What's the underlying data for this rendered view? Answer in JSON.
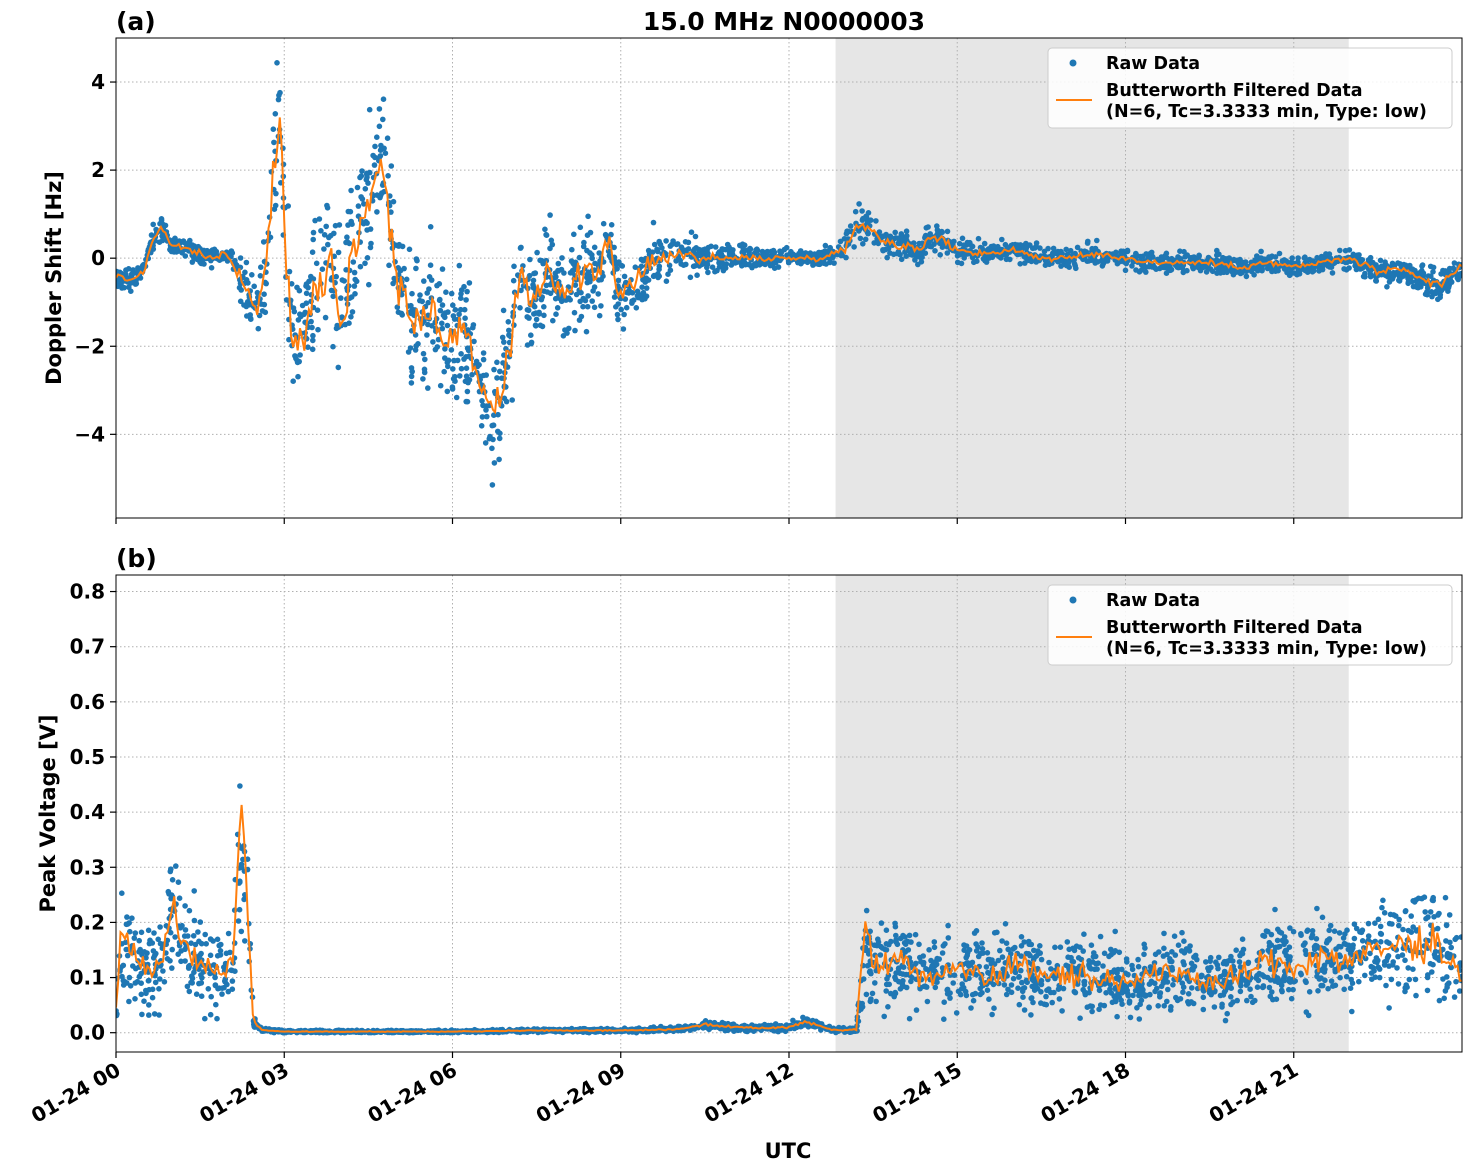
{
  "figure_title": "15.0 MHz N0000003",
  "xlabel": "UTC",
  "colors": {
    "raw": "#1f77b4",
    "filtered": "#ff7f0e",
    "shade": "#e6e6e6",
    "grid": "#b0b0b0"
  },
  "x_ticks": [
    {
      "hour": 0,
      "label": "01-24 00"
    },
    {
      "hour": 3,
      "label": "01-24 03"
    },
    {
      "hour": 6,
      "label": "01-24 06"
    },
    {
      "hour": 9,
      "label": "01-24 09"
    },
    {
      "hour": 12,
      "label": "01-24 12"
    },
    {
      "hour": 15,
      "label": "01-24 15"
    },
    {
      "hour": 18,
      "label": "01-24 18"
    },
    {
      "hour": 21,
      "label": "01-24 21"
    }
  ],
  "chart_data": [
    {
      "type": "scatter",
      "panel_label": "(a)",
      "ylabel": "Doppler Shift [Hz]",
      "xlim_hours": [
        0,
        24
      ],
      "ylim": [
        -5.9,
        5.0
      ],
      "y_ticks": [
        {
          "v": 4,
          "label": "4"
        },
        {
          "v": 2,
          "label": "2"
        },
        {
          "v": 0,
          "label": "0"
        },
        {
          "v": -2,
          "label": "−2"
        },
        {
          "v": -4,
          "label": "−4"
        }
      ],
      "shaded_region_hours": [
        12.83,
        21.98
      ],
      "grid": true,
      "legend_position": "top-right",
      "series": [
        {
          "name": "Raw Data",
          "mark": "points",
          "x_hours": [
            0,
            0.25,
            0.5,
            0.65,
            0.8,
            1.0,
            1.3,
            1.6,
            2.0,
            2.1,
            2.3,
            2.5,
            2.7,
            2.85,
            2.95,
            3.05,
            3.2,
            3.5,
            3.8,
            4.0,
            4.3,
            4.6,
            4.8,
            5.0,
            5.3,
            5.6,
            5.9,
            6.2,
            6.5,
            6.7,
            6.9,
            7.2,
            7.4,
            7.7,
            8.0,
            8.3,
            8.6,
            8.8,
            9.0,
            9.3,
            9.6,
            10.0,
            10.5,
            11.0,
            11.5,
            12.0,
            12.5,
            12.8,
            13.0,
            13.2,
            13.4,
            13.7,
            14.0,
            14.3,
            14.6,
            15.0,
            15.5,
            16.0,
            16.5,
            17.0,
            17.5,
            18.0,
            18.5,
            19.0,
            19.5,
            20.0,
            20.5,
            21.0,
            21.5,
            22.0,
            22.5,
            23.0,
            23.3,
            23.6,
            24.0
          ],
          "y": [
            -0.4,
            -0.5,
            -0.3,
            0.4,
            0.7,
            0.3,
            0.2,
            0.0,
            0.1,
            -0.2,
            -0.6,
            -1.3,
            0.0,
            2.8,
            2.5,
            -0.5,
            -2.0,
            -1.0,
            0.2,
            -1.5,
            0.5,
            1.8,
            2.0,
            -0.5,
            -1.5,
            -1.0,
            -2.0,
            -1.5,
            -2.8,
            -3.8,
            -3.2,
            -0.5,
            -1.0,
            -0.2,
            -0.8,
            -0.4,
            -0.3,
            0.5,
            -1.0,
            -0.5,
            0.0,
            0.1,
            0.0,
            0.0,
            0.0,
            0.0,
            0.0,
            0.1,
            0.2,
            0.8,
            0.7,
            0.4,
            0.3,
            0.2,
            0.5,
            0.2,
            0.1,
            0.2,
            0.0,
            0.0,
            0.1,
            0.0,
            -0.1,
            -0.1,
            -0.1,
            -0.2,
            -0.1,
            -0.2,
            -0.1,
            0.0,
            -0.3,
            -0.3,
            -0.5,
            -0.7,
            -0.2
          ],
          "spread": [
            0.2,
            0.2,
            0.2,
            0.25,
            0.25,
            0.2,
            0.2,
            0.2,
            0.25,
            0.3,
            0.5,
            0.6,
            1.0,
            1.6,
            1.6,
            1.6,
            1.4,
            1.4,
            1.6,
            1.5,
            1.4,
            1.4,
            1.4,
            1.3,
            1.3,
            1.3,
            1.2,
            1.2,
            1.0,
            1.2,
            1.2,
            1.0,
            1.0,
            1.0,
            1.0,
            0.9,
            0.9,
            0.9,
            0.9,
            0.7,
            0.6,
            0.45,
            0.35,
            0.25,
            0.2,
            0.15,
            0.15,
            0.2,
            0.3,
            0.4,
            0.35,
            0.3,
            0.3,
            0.3,
            0.3,
            0.25,
            0.2,
            0.2,
            0.2,
            0.2,
            0.2,
            0.2,
            0.2,
            0.2,
            0.2,
            0.2,
            0.2,
            0.2,
            0.2,
            0.2,
            0.25,
            0.25,
            0.3,
            0.35,
            0.25
          ]
        },
        {
          "name": "Butterworth Filtered Data\n(N=6, Tc=3.3333 min, Type: low)",
          "mark": "line",
          "x_hours": [
            0,
            0.25,
            0.5,
            0.65,
            0.8,
            1.0,
            1.3,
            1.6,
            2.0,
            2.1,
            2.3,
            2.5,
            2.7,
            2.85,
            2.95,
            3.05,
            3.2,
            3.5,
            3.8,
            4.0,
            4.3,
            4.6,
            4.8,
            5.0,
            5.3,
            5.6,
            5.9,
            6.2,
            6.5,
            6.7,
            6.9,
            7.2,
            7.4,
            7.7,
            8.0,
            8.3,
            8.6,
            8.8,
            9.0,
            9.3,
            9.6,
            10.0,
            10.5,
            11.0,
            11.5,
            12.0,
            12.5,
            12.8,
            13.0,
            13.2,
            13.4,
            13.7,
            14.0,
            14.3,
            14.6,
            15.0,
            15.5,
            16.0,
            16.5,
            17.0,
            17.5,
            18.0,
            18.5,
            19.0,
            19.5,
            20.0,
            20.5,
            21.0,
            21.5,
            22.0,
            22.5,
            23.0,
            23.3,
            23.6,
            24.0
          ],
          "y": [
            -0.4,
            -0.5,
            -0.3,
            0.4,
            0.7,
            0.3,
            0.2,
            0.0,
            0.1,
            -0.2,
            -0.6,
            -1.3,
            0.0,
            2.8,
            2.5,
            -0.5,
            -2.0,
            -1.0,
            0.2,
            -1.5,
            0.5,
            1.8,
            2.0,
            -0.5,
            -1.5,
            -1.0,
            -2.0,
            -1.5,
            -2.8,
            -3.5,
            -3.2,
            -0.5,
            -1.0,
            -0.2,
            -0.8,
            -0.4,
            -0.3,
            0.5,
            -1.0,
            -0.5,
            0.0,
            0.1,
            0.0,
            0.0,
            0.0,
            0.0,
            0.0,
            0.1,
            0.2,
            0.8,
            0.7,
            0.4,
            0.3,
            0.2,
            0.5,
            0.2,
            0.1,
            0.2,
            0.0,
            0.0,
            0.1,
            0.0,
            -0.1,
            -0.1,
            -0.1,
            -0.2,
            -0.1,
            -0.2,
            -0.1,
            0.0,
            -0.3,
            -0.3,
            -0.5,
            -0.6,
            -0.2
          ]
        }
      ]
    },
    {
      "type": "scatter",
      "panel_label": "(b)",
      "ylabel": "Peak Voltage [V]",
      "xlim_hours": [
        0,
        24
      ],
      "ylim": [
        -0.035,
        0.83
      ],
      "y_ticks": [
        {
          "v": 0.0,
          "label": "0.0"
        },
        {
          "v": 0.1,
          "label": "0.1"
        },
        {
          "v": 0.2,
          "label": "0.2"
        },
        {
          "v": 0.3,
          "label": "0.3"
        },
        {
          "v": 0.4,
          "label": "0.4"
        },
        {
          "v": 0.5,
          "label": "0.5"
        },
        {
          "v": 0.6,
          "label": "0.6"
        },
        {
          "v": 0.7,
          "label": "0.7"
        },
        {
          "v": 0.8,
          "label": "0.8"
        }
      ],
      "shaded_region_hours": [
        12.83,
        21.98
      ],
      "grid": true,
      "legend_position": "top-right",
      "series": [
        {
          "name": "Raw Data",
          "mark": "points",
          "x_hours": [
            0,
            0.1,
            0.3,
            0.6,
            0.8,
            1.0,
            1.3,
            1.6,
            1.9,
            2.1,
            2.25,
            2.35,
            2.45,
            2.6,
            3.0,
            6.0,
            7.5,
            9.0,
            10.0,
            10.5,
            11.0,
            11.5,
            12.0,
            12.3,
            12.8,
            13.2,
            13.35,
            13.6,
            14.0,
            14.5,
            15.0,
            15.5,
            16.0,
            16.5,
            17.0,
            17.5,
            18.0,
            18.5,
            19.0,
            19.5,
            20.0,
            20.5,
            21.0,
            21.5,
            22.0,
            22.5,
            23.0,
            23.5,
            24.0
          ],
          "y": [
            0.05,
            0.18,
            0.15,
            0.1,
            0.12,
            0.22,
            0.14,
            0.12,
            0.1,
            0.15,
            0.4,
            0.2,
            0.02,
            0.005,
            0.002,
            0.002,
            0.004,
            0.004,
            0.006,
            0.015,
            0.01,
            0.008,
            0.01,
            0.02,
            0.005,
            0.005,
            0.15,
            0.12,
            0.13,
            0.1,
            0.12,
            0.1,
            0.13,
            0.1,
            0.11,
            0.1,
            0.09,
            0.1,
            0.11,
            0.09,
            0.1,
            0.13,
            0.12,
            0.14,
            0.13,
            0.15,
            0.16,
            0.17,
            0.1
          ],
          "spread": [
            0.04,
            0.09,
            0.08,
            0.06,
            0.07,
            0.1,
            0.08,
            0.07,
            0.06,
            0.08,
            0.15,
            0.1,
            0.01,
            0.003,
            0.002,
            0.002,
            0.003,
            0.003,
            0.004,
            0.007,
            0.006,
            0.005,
            0.006,
            0.009,
            0.004,
            0.004,
            0.08,
            0.07,
            0.07,
            0.06,
            0.07,
            0.06,
            0.07,
            0.06,
            0.06,
            0.06,
            0.05,
            0.06,
            0.06,
            0.05,
            0.06,
            0.07,
            0.07,
            0.08,
            0.07,
            0.08,
            0.09,
            0.1,
            0.06
          ]
        },
        {
          "name": "Butterworth Filtered Data\n(N=6, Tc=3.3333 min, Type: low)",
          "mark": "line",
          "x_hours": [
            0,
            0.1,
            0.3,
            0.6,
            0.8,
            1.0,
            1.3,
            1.6,
            1.9,
            2.1,
            2.25,
            2.35,
            2.45,
            2.6,
            3.0,
            6.0,
            7.5,
            9.0,
            10.0,
            10.5,
            11.0,
            11.5,
            12.0,
            12.3,
            12.8,
            13.2,
            13.35,
            13.6,
            14.0,
            14.5,
            15.0,
            15.5,
            16.0,
            16.5,
            17.0,
            17.5,
            18.0,
            18.5,
            19.0,
            19.5,
            20.0,
            20.5,
            21.0,
            21.5,
            22.0,
            22.5,
            23.0,
            23.5,
            24.0
          ],
          "y": [
            0.05,
            0.18,
            0.15,
            0.1,
            0.12,
            0.22,
            0.14,
            0.12,
            0.1,
            0.15,
            0.46,
            0.2,
            0.02,
            0.005,
            0.002,
            0.002,
            0.004,
            0.004,
            0.006,
            0.015,
            0.01,
            0.008,
            0.01,
            0.02,
            0.005,
            0.005,
            0.18,
            0.12,
            0.13,
            0.1,
            0.12,
            0.1,
            0.13,
            0.1,
            0.11,
            0.1,
            0.09,
            0.1,
            0.11,
            0.09,
            0.1,
            0.13,
            0.12,
            0.14,
            0.13,
            0.15,
            0.16,
            0.17,
            0.1
          ]
        }
      ]
    }
  ]
}
